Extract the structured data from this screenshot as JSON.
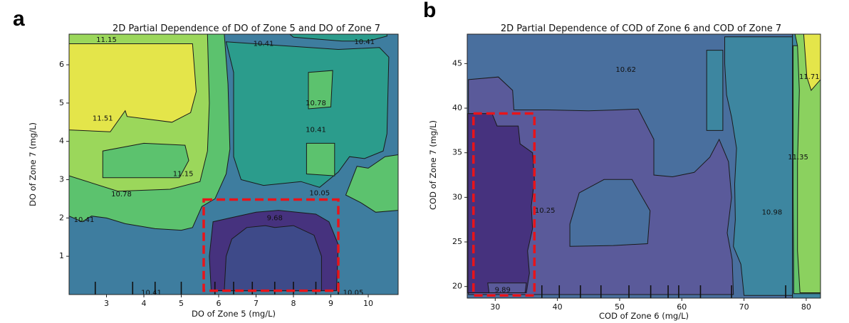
{
  "chart_data": [
    {
      "panel": "a",
      "type": "contour",
      "title": "2D Partial Dependence of DO of Zone 5 and DO of Zone 7",
      "xlabel": "DO of Zone 5  (mg/L)",
      "ylabel": "DO of Zone 7  (mg/L)",
      "xlim": [
        2.0,
        10.8
      ],
      "ylim": [
        0.0,
        6.8
      ],
      "xticks": [
        3,
        4,
        5,
        6,
        7,
        8,
        9,
        10
      ],
      "yticks": [
        1,
        2,
        3,
        4,
        5,
        6
      ],
      "levels": [
        9.68,
        10.05,
        10.41,
        10.78,
        11.15,
        11.51
      ],
      "colors": [
        "#3e4a89",
        "#46327e",
        "#6c6fa9",
        "#3e7d9f",
        "#2b9c8c",
        "#5cc26e",
        "#9bd75b",
        "#e4e54a"
      ],
      "rug_x": [
        2.7,
        3.7,
        4.3,
        5.0,
        5.9,
        6.4,
        6.9,
        7.5,
        8.0,
        8.6,
        9.2
      ],
      "contour_labels": [
        {
          "text": "11.15",
          "x": 3.0,
          "y": 6.65
        },
        {
          "text": "10.41",
          "x": 7.2,
          "y": 6.55
        },
        {
          "text": "10.41",
          "x": 9.9,
          "y": 6.6
        },
        {
          "text": "10.78",
          "x": 8.6,
          "y": 5.0
        },
        {
          "text": "11.51",
          "x": 2.9,
          "y": 4.6
        },
        {
          "text": "10.41",
          "x": 8.6,
          "y": 4.3
        },
        {
          "text": "11.15",
          "x": 5.05,
          "y": 3.15
        },
        {
          "text": "10.05",
          "x": 8.7,
          "y": 2.65
        },
        {
          "text": "10.78",
          "x": 3.4,
          "y": 2.62
        },
        {
          "text": "10.41",
          "x": 2.4,
          "y": 1.95
        },
        {
          "text": "9.68",
          "x": 7.5,
          "y": 2.0
        },
        {
          "text": "10.41",
          "x": 4.2,
          "y": 0.05
        },
        {
          "text": "10.05",
          "x": 9.6,
          "y": 0.05
        }
      ],
      "regions": [
        {
          "level": 5,
          "xy": [
            [
              2.0,
              2.05
            ],
            [
              2.35,
              1.9
            ],
            [
              2.6,
              2.05
            ],
            [
              3.0,
              2.0
            ],
            [
              3.5,
              1.85
            ],
            [
              4.3,
              1.72
            ],
            [
              5.0,
              1.68
            ],
            [
              5.3,
              1.75
            ],
            [
              5.55,
              2.3
            ],
            [
              5.9,
              2.5
            ],
            [
              6.2,
              3.15
            ],
            [
              6.3,
              3.8
            ],
            [
              6.25,
              5.5
            ],
            [
              6.15,
              6.8
            ],
            [
              2.0,
              6.8
            ]
          ]
        },
        {
          "level": 5,
          "xy": [
            [
              9.4,
              2.6
            ],
            [
              9.7,
              3.35
            ],
            [
              10.0,
              3.3
            ],
            [
              10.45,
              3.6
            ],
            [
              10.8,
              3.65
            ],
            [
              10.8,
              2.2
            ],
            [
              10.2,
              2.15
            ],
            [
              9.8,
              2.4
            ]
          ]
        },
        {
          "level": 4,
          "xy": [
            [
              7.9,
              6.8
            ],
            [
              8.0,
              6.72
            ],
            [
              9.3,
              6.62
            ],
            [
              10.0,
              6.62
            ],
            [
              10.5,
              6.75
            ],
            [
              10.5,
              6.8
            ]
          ]
        },
        {
          "level": 4,
          "xy": [
            [
              6.2,
              6.6
            ],
            [
              9.2,
              6.4
            ],
            [
              10.3,
              6.45
            ],
            [
              10.55,
              6.2
            ],
            [
              10.5,
              4.2
            ],
            [
              10.4,
              3.75
            ],
            [
              9.9,
              3.55
            ],
            [
              9.5,
              3.6
            ],
            [
              9.2,
              3.2
            ],
            [
              8.7,
              2.8
            ],
            [
              8.2,
              2.95
            ],
            [
              7.2,
              2.85
            ],
            [
              6.6,
              3.0
            ],
            [
              6.4,
              3.6
            ],
            [
              6.4,
              5.8
            ]
          ]
        },
        {
          "level": 5,
          "xy": [
            [
              8.4,
              5.8
            ],
            [
              9.05,
              5.85
            ],
            [
              9.0,
              4.9
            ],
            [
              8.4,
              4.85
            ]
          ]
        },
        {
          "level": 5,
          "xy": [
            [
              8.35,
              3.95
            ],
            [
              9.1,
              3.95
            ],
            [
              9.1,
              3.1
            ],
            [
              8.35,
              3.15
            ]
          ]
        },
        {
          "level": 6,
          "xy": [
            [
              2.0,
              6.8
            ],
            [
              5.7,
              6.8
            ],
            [
              5.75,
              5.0
            ],
            [
              5.7,
              3.75
            ],
            [
              5.5,
              2.95
            ],
            [
              4.7,
              2.75
            ],
            [
              3.3,
              2.7
            ],
            [
              2.0,
              3.1
            ]
          ]
        },
        {
          "level": 5,
          "xy": [
            [
              2.9,
              3.75
            ],
            [
              2.9,
              3.05
            ],
            [
              4.95,
              3.05
            ],
            [
              5.2,
              3.5
            ],
            [
              5.1,
              3.9
            ],
            [
              4.0,
              3.95
            ]
          ]
        },
        {
          "level": 7,
          "xy": [
            [
              2.0,
              6.55
            ],
            [
              5.3,
              6.55
            ],
            [
              5.4,
              5.3
            ],
            [
              5.25,
              4.75
            ],
            [
              4.75,
              4.5
            ],
            [
              3.55,
              4.65
            ],
            [
              3.5,
              4.8
            ],
            [
              3.1,
              4.25
            ],
            [
              2.0,
              4.3
            ]
          ]
        },
        {
          "level": 1,
          "xy": [
            [
              5.8,
              0.1
            ],
            [
              9.15,
              0.1
            ],
            [
              9.2,
              1.3
            ],
            [
              8.95,
              1.9
            ],
            [
              8.6,
              2.1
            ],
            [
              7.6,
              2.2
            ],
            [
              7.0,
              2.15
            ],
            [
              6.3,
              2.0
            ],
            [
              5.85,
              1.9
            ],
            [
              5.75,
              1.0
            ]
          ]
        },
        {
          "level": 0,
          "xy": [
            [
              6.15,
              0.1
            ],
            [
              8.75,
              0.1
            ],
            [
              8.75,
              1.0
            ],
            [
              8.55,
              1.55
            ],
            [
              8.0,
              1.8
            ],
            [
              7.5,
              1.75
            ],
            [
              7.25,
              1.8
            ],
            [
              6.75,
              1.75
            ],
            [
              6.35,
              1.45
            ],
            [
              6.2,
              1.0
            ]
          ]
        }
      ],
      "highlight": {
        "x": [
          5.6,
          9.2
        ],
        "y": [
          0.1,
          2.48
        ]
      }
    },
    {
      "panel": "b",
      "type": "contour",
      "title": "2D Partial Dependence of COD of Zone 6 and COD of Zone 7",
      "xlabel": "COD of Zone 6 (mg/L)",
      "ylabel": "COD of Zone 7 (mg/L)",
      "xlim": [
        25.5,
        82.3
      ],
      "ylim": [
        18.7,
        48.3
      ],
      "xticks": [
        30,
        40,
        50,
        60,
        70,
        80
      ],
      "yticks": [
        20,
        25,
        30,
        35,
        40,
        45
      ],
      "levels": [
        9.89,
        10.25,
        10.62,
        10.98,
        11.35,
        11.71
      ],
      "colors": [
        "#46327e",
        "#5a5a9a",
        "#496f9e",
        "#3d86a0",
        "#2e9e8a",
        "#63c26b",
        "#8bd15f",
        "#e4e54a"
      ],
      "rug_x": [
        37.5,
        40.3,
        43.7,
        47.0,
        51.5,
        55.0,
        57.8,
        59.5,
        63.0,
        68.0,
        76.7
      ],
      "contour_labels": [
        {
          "text": "10.62",
          "x": 51.0,
          "y": 44.3
        },
        {
          "text": "11.71",
          "x": 80.5,
          "y": 43.5
        },
        {
          "text": "11.35",
          "x": 78.7,
          "y": 34.5
        },
        {
          "text": "10.98",
          "x": 74.5,
          "y": 28.3
        },
        {
          "text": "10.25",
          "x": 38.0,
          "y": 28.5
        },
        {
          "text": "9.89",
          "x": 31.2,
          "y": 19.6
        }
      ],
      "regions": [
        {
          "level": 2,
          "xy": [
            [
              25.5,
              48.3
            ],
            [
              77.8,
              48.3
            ],
            [
              77.8,
              18.7
            ],
            [
              25.5,
              18.7
            ]
          ]
        },
        {
          "level": 3,
          "xy": [
            [
              66.9,
              48.0
            ],
            [
              77.8,
              48.0
            ],
            [
              77.8,
              19.0
            ],
            [
              70.0,
              19.0
            ],
            [
              69.5,
              22.5
            ],
            [
              68.3,
              24.5
            ],
            [
              68.6,
              27.5
            ],
            [
              68.5,
              31.5
            ],
            [
              68.8,
              35.5
            ],
            [
              68.0,
              39.0
            ],
            [
              67.2,
              41.5
            ],
            [
              66.9,
              45.0
            ]
          ]
        },
        {
          "level": 3,
          "xy": [
            [
              64.0,
              46.5
            ],
            [
              66.6,
              46.5
            ],
            [
              66.6,
              37.5
            ],
            [
              64.0,
              37.5
            ]
          ]
        },
        {
          "level": 1,
          "xy": [
            [
              25.7,
              43.2
            ],
            [
              30.5,
              43.5
            ],
            [
              32.8,
              42.0
            ],
            [
              33.0,
              39.8
            ],
            [
              38.5,
              39.8
            ],
            [
              45.0,
              39.7
            ],
            [
              49.5,
              39.8
            ],
            [
              53.0,
              39.9
            ],
            [
              55.5,
              36.5
            ],
            [
              55.5,
              32.5
            ],
            [
              58.5,
              32.3
            ],
            [
              62.0,
              32.8
            ],
            [
              64.5,
              34.5
            ],
            [
              66.0,
              36.5
            ],
            [
              67.5,
              34.0
            ],
            [
              68.0,
              30.0
            ],
            [
              67.3,
              26.0
            ],
            [
              68.1,
              23.0
            ],
            [
              68.3,
              19.1
            ],
            [
              25.7,
              19.1
            ]
          ]
        },
        {
          "level": 2,
          "xy": [
            [
              42.0,
              24.5
            ],
            [
              49.0,
              24.6
            ],
            [
              54.5,
              24.8
            ],
            [
              54.9,
              28.5
            ],
            [
              52.0,
              32.0
            ],
            [
              47.5,
              32.0
            ],
            [
              43.5,
              30.5
            ],
            [
              42.0,
              27.0
            ]
          ]
        },
        {
          "level": 3,
          "xy": [
            [
              77.8,
              48.3
            ],
            [
              82.3,
              48.3
            ],
            [
              82.3,
              18.7
            ],
            [
              77.8,
              18.7
            ]
          ]
        },
        {
          "level": 5,
          "xy": [
            [
              77.9,
              47.0
            ],
            [
              82.3,
              47.0
            ],
            [
              82.3,
              19.2
            ],
            [
              78.0,
              19.2
            ],
            [
              77.9,
              30.0
            ]
          ]
        },
        {
          "level": 6,
          "xy": [
            [
              78.2,
              48.3
            ],
            [
              82.3,
              48.3
            ],
            [
              82.3,
              19.3
            ],
            [
              79.0,
              19.3
            ],
            [
              78.6,
              24.0
            ],
            [
              78.6,
              34.0
            ],
            [
              78.9,
              42.0
            ],
            [
              78.6,
              47.0
            ]
          ]
        },
        {
          "level": 7,
          "xy": [
            [
              79.6,
              48.3
            ],
            [
              82.3,
              48.3
            ],
            [
              82.3,
              43.2
            ],
            [
              80.8,
              42.0
            ],
            [
              80.1,
              43.5
            ]
          ]
        },
        {
          "level": 0,
          "xy": [
            [
              25.6,
              39.4
            ],
            [
              29.5,
              39.4
            ],
            [
              30.3,
              38.0
            ],
            [
              33.7,
              38.0
            ],
            [
              34.0,
              36.0
            ],
            [
              36.0,
              35.0
            ],
            [
              36.3,
              32.0
            ],
            [
              35.8,
              29.0
            ],
            [
              36.0,
              26.5
            ],
            [
              35.2,
              24.0
            ],
            [
              35.5,
              21.5
            ],
            [
              35.0,
              19.3
            ],
            [
              25.6,
              19.3
            ]
          ]
        },
        {
          "level": 1,
          "xy": [
            [
              28.8,
              20.4
            ],
            [
              35.0,
              20.4
            ],
            [
              34.8,
              19.3
            ],
            [
              29.0,
              19.3
            ]
          ]
        }
      ],
      "highlight": {
        "x": [
          26.5,
          36.3
        ],
        "y": [
          19.0,
          39.4
        ]
      }
    }
  ]
}
